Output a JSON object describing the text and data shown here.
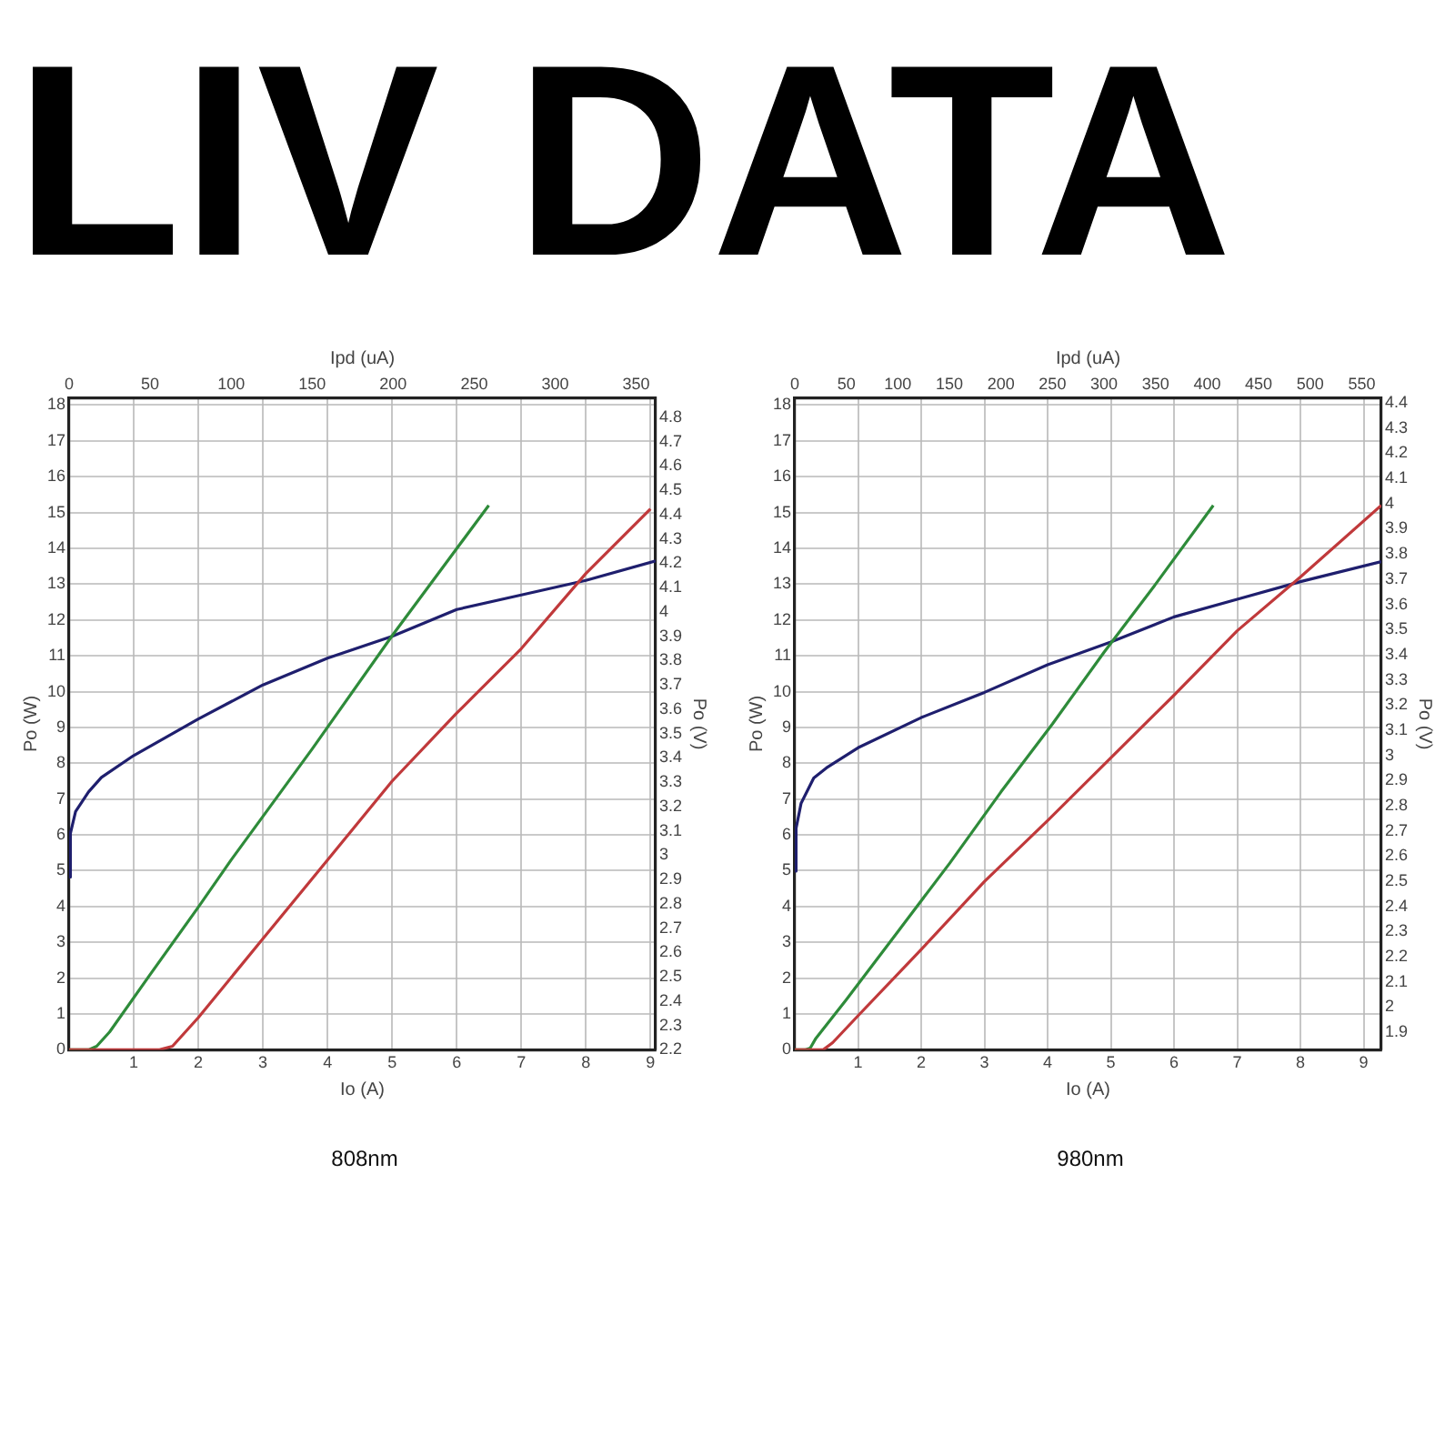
{
  "chart_data": [
    {
      "type": "other",
      "title": "LIV DATA"
    },
    {
      "type": "line",
      "xlabel": "Io (A)",
      "x2label": "Ipd (uA)",
      "ylabel": "Po (W)",
      "y2label": "Po (V)",
      "annotations": [
        "808nm"
      ],
      "xlim": [
        0,
        9.08
      ],
      "xticks": [
        1,
        2,
        3,
        4,
        5,
        6,
        7,
        8,
        9
      ],
      "x2lim": [
        0,
        362
      ],
      "x2ticks": [
        0,
        50,
        100,
        150,
        200,
        250,
        300,
        350
      ],
      "ylim": [
        0,
        18.2
      ],
      "yticks": [
        0,
        1,
        2,
        3,
        4,
        5,
        6,
        7,
        8,
        9,
        10,
        11,
        12,
        13,
        14,
        15,
        16,
        17,
        18
      ],
      "y2lim": [
        2.2,
        4.88
      ],
      "y2ticks": [
        2.2,
        2.3,
        2.4,
        2.5,
        2.6,
        2.7,
        2.8,
        2.9,
        3,
        3.1,
        3.2,
        3.3,
        3.4,
        3.5,
        3.6,
        3.7,
        3.8,
        3.9,
        4,
        4.1,
        4.2,
        4.3,
        4.4,
        4.5,
        4.6,
        4.7,
        4.8
      ],
      "grid": true,
      "legend": false,
      "series": [
        {
          "color": "#c0393b",
          "x": [
            0,
            1.4,
            1.6,
            1.8,
            2,
            3,
            4,
            5,
            6,
            7,
            8,
            9
          ],
          "values": [
            0,
            0,
            0.1,
            0.5,
            0.9,
            3.1,
            5.3,
            7.5,
            9.4,
            11.2,
            13.3,
            15.1
          ]
        },
        {
          "color": "#2e8b3a",
          "axis": "x2",
          "x": [
            0,
            12,
            17,
            25,
            50,
            80,
            100,
            150,
            200,
            259
          ],
          "values": [
            0,
            0,
            0.1,
            0.5,
            2.1,
            4,
            5.3,
            8.4,
            11.6,
            15.2
          ]
        },
        {
          "color": "#1f1f6e",
          "axis": "y2",
          "x": [
            0,
            0.02,
            0.1,
            0.3,
            0.5,
            1,
            2,
            3,
            4,
            5,
            6,
            7,
            8,
            9.08
          ],
          "values": [
            2.91,
            3.09,
            3.18,
            3.26,
            3.32,
            3.41,
            3.56,
            3.7,
            3.81,
            3.9,
            4.01,
            4.07,
            4.13,
            4.21
          ]
        }
      ]
    },
    {
      "type": "line",
      "xlabel": "Io (A)",
      "x2label": "Ipd (uA)",
      "ylabel": "Po (W)",
      "y2label": "Po (V)",
      "annotations": [
        "980nm"
      ],
      "xlim": [
        0,
        9.28
      ],
      "xticks": [
        1,
        2,
        3,
        4,
        5,
        6,
        7,
        8,
        9
      ],
      "x2lim": [
        0,
        569
      ],
      "x2ticks": [
        0,
        50,
        100,
        150,
        200,
        250,
        300,
        350,
        400,
        450,
        500,
        550
      ],
      "ylim": [
        0,
        18.2
      ],
      "yticks": [
        0,
        1,
        2,
        3,
        4,
        5,
        6,
        7,
        8,
        9,
        10,
        11,
        12,
        13,
        14,
        15,
        16,
        17,
        18
      ],
      "y2lim": [
        1.83,
        4.42
      ],
      "y2ticks": [
        1.9,
        2,
        2.1,
        2.2,
        2.3,
        2.4,
        2.5,
        2.6,
        2.7,
        2.8,
        2.9,
        3,
        3.1,
        3.2,
        3.3,
        3.4,
        3.5,
        3.6,
        3.7,
        3.8,
        3.9,
        4,
        4.1,
        4.2,
        4.3,
        4.4
      ],
      "grid": true,
      "legend": false,
      "series": [
        {
          "color": "#c0393b",
          "x": [
            0,
            0.45,
            0.6,
            1,
            2,
            3,
            4,
            5,
            6,
            7,
            8,
            9.28
          ],
          "values": [
            0,
            0,
            0.2,
            0.95,
            2.8,
            4.7,
            6.4,
            8.15,
            9.9,
            11.7,
            13.2,
            15.2
          ]
        },
        {
          "color": "#2e8b3a",
          "axis": "x2",
          "x": [
            0,
            10,
            15,
            20,
            50,
            100,
            150,
            200,
            250,
            300,
            350,
            406
          ],
          "values": [
            0,
            0,
            0.05,
            0.3,
            1.4,
            3.3,
            5.2,
            7.2,
            9.1,
            11.1,
            13,
            15.2
          ]
        },
        {
          "color": "#1f1f6e",
          "axis": "y2",
          "x": [
            0,
            0.02,
            0.1,
            0.3,
            0.5,
            1,
            2,
            3,
            4,
            5,
            6,
            7,
            8,
            9.28
          ],
          "values": [
            2.54,
            2.71,
            2.81,
            2.91,
            2.95,
            3.03,
            3.15,
            3.25,
            3.36,
            3.45,
            3.55,
            3.62,
            3.69,
            3.77
          ]
        }
      ]
    }
  ]
}
